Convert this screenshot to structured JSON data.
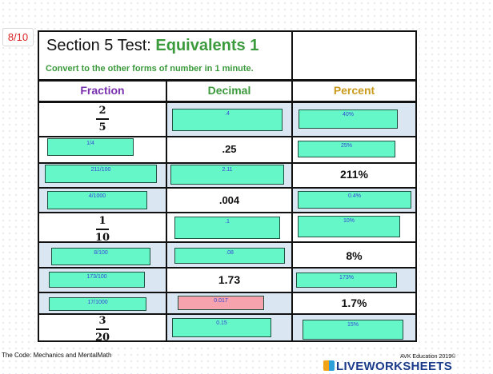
{
  "score": "8/10",
  "worksheet": {
    "title_plain": "Section 5 Test: ",
    "title_highlight": "Equivalents 1",
    "subtitle": "Convert to the other forms of number in 1 minute.",
    "headers": {
      "fraction": "Fraction",
      "decimal": "Decimal",
      "percent": "Percent"
    },
    "header_colors": {
      "fraction": "#7a2fae",
      "decimal": "#3b9a3c",
      "percent": "#c99a1b"
    },
    "rows": [
      {
        "fraction": {
          "num": "2",
          "den": "5"
        },
        "decimal_answer": ".4",
        "percent_answer": "40%"
      },
      {
        "fraction_answer": "1/4",
        "decimal": ".25",
        "percent_answer": "25%"
      },
      {
        "fraction_answer": "211/100",
        "decimal_answer": "2.11",
        "percent": "211%"
      },
      {
        "fraction_answer": "4/1000",
        "decimal": ".004",
        "percent_answer": "0.4%"
      },
      {
        "fraction": {
          "num": "1",
          "den": "10"
        },
        "decimal_answer": ".1",
        "percent_answer": "10%"
      },
      {
        "fraction_answer": "8/100",
        "decimal_answer": ".08",
        "percent": "8%"
      },
      {
        "fraction_answer": "173/100",
        "decimal": "1.73",
        "percent_answer": "173%"
      },
      {
        "fraction_answer": "17/1000",
        "decimal_answer": "0.017",
        "percent": "1.7%"
      },
      {
        "fraction": {
          "num": "3",
          "den": "20"
        },
        "decimal_answer": "0.15",
        "percent_answer": "15%"
      }
    ],
    "answer_status": {
      "correct_color": "#66f7c8",
      "wrong_color": "#f6a3ad"
    }
  },
  "footer": {
    "left": "The Code: Mechanics and MentalMath",
    "right": "AVK Education 2019©",
    "brand": "LIVEWORKSHEETS"
  }
}
